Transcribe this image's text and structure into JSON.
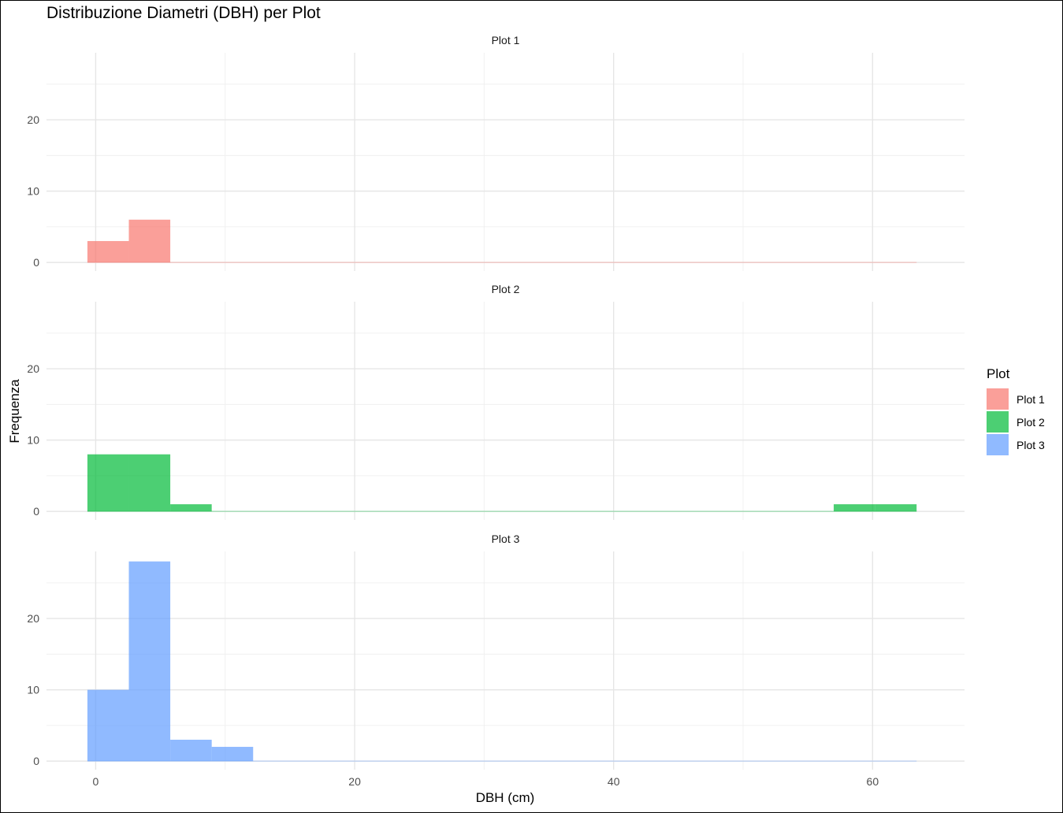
{
  "chart_data": {
    "type": "bar",
    "title": "Distribuzione Diametri (DBH) per Plot",
    "xlabel": "DBH (cm)",
    "ylabel": "Frequenza",
    "xlim": [
      -3.8,
      67.1
    ],
    "ylim": [
      -1.2,
      29.4
    ],
    "x_ticks": [
      0,
      20,
      40,
      60
    ],
    "y_ticks": [
      0,
      10,
      20
    ],
    "bin_width": 3.2,
    "legend": {
      "title": "Plot",
      "placement": "right",
      "entries": [
        {
          "label": "Plot 1",
          "color": "#F8766D"
        },
        {
          "label": "Plot 2",
          "color": "#00BA38"
        },
        {
          "label": "Plot 3",
          "color": "#619CFF"
        }
      ]
    },
    "panels": [
      {
        "name": "Plot 1",
        "color": "#F8766D",
        "bins": [
          {
            "x0": -0.64,
            "x1": 2.56,
            "count": 3
          },
          {
            "x0": 2.56,
            "x1": 5.76,
            "count": 6
          }
        ],
        "baseline_range": [
          -0.64,
          63.4
        ]
      },
      {
        "name": "Plot 2",
        "color": "#00BA38",
        "bins": [
          {
            "x0": -0.64,
            "x1": 2.56,
            "count": 8
          },
          {
            "x0": 2.56,
            "x1": 5.76,
            "count": 8
          },
          {
            "x0": 5.76,
            "x1": 8.96,
            "count": 1
          },
          {
            "x0": 57.0,
            "x1": 60.2,
            "count": 1
          },
          {
            "x0": 60.2,
            "x1": 63.4,
            "count": 1
          }
        ],
        "baseline_range": [
          -0.64,
          63.4
        ]
      },
      {
        "name": "Plot 3",
        "color": "#619CFF",
        "bins": [
          {
            "x0": -0.64,
            "x1": 2.56,
            "count": 10
          },
          {
            "x0": 2.56,
            "x1": 5.76,
            "count": 28
          },
          {
            "x0": 5.76,
            "x1": 8.96,
            "count": 3
          },
          {
            "x0": 8.96,
            "x1": 12.16,
            "count": 2
          }
        ],
        "baseline_range": [
          -0.64,
          63.4
        ]
      }
    ],
    "grid": true
  }
}
